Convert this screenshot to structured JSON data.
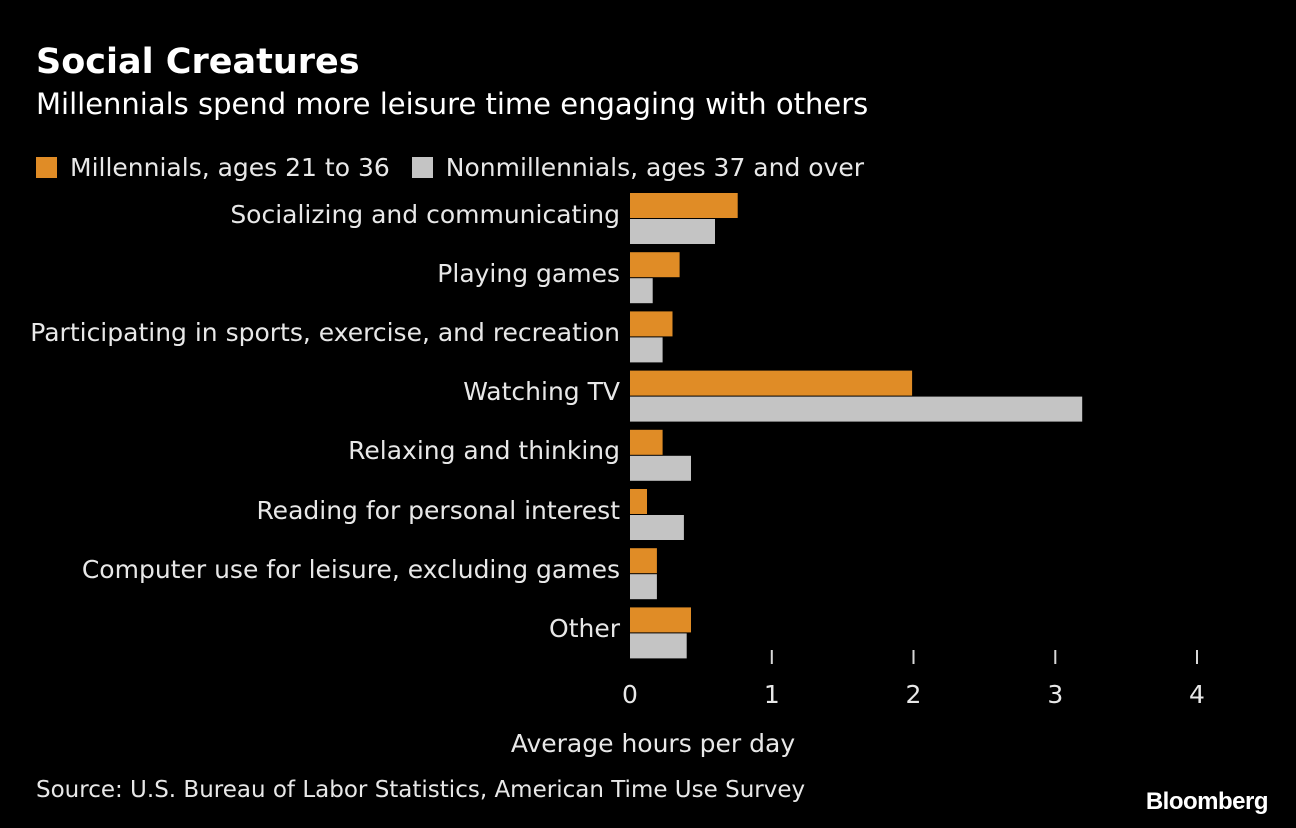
{
  "chart_data": {
    "type": "bar",
    "orientation": "horizontal",
    "title": "Social Creatures",
    "subtitle": "Millennials spend more leisure time engaging with others",
    "categories": [
      "Socializing and communicating",
      "Playing games",
      "Participating in sports, exercise, and recreation",
      "Watching TV",
      "Relaxing and thinking",
      "Reading for personal interest",
      "Computer use for leisure, excluding games",
      "Other"
    ],
    "series": [
      {
        "name": "Millennials, ages 21 to 36",
        "color": "#e08c26",
        "values": [
          0.76,
          0.35,
          0.3,
          1.99,
          0.23,
          0.12,
          0.19,
          0.43
        ]
      },
      {
        "name": "Nonmillennials, ages 37 and over",
        "color": "#c4c4c4",
        "values": [
          0.6,
          0.16,
          0.23,
          3.19,
          0.43,
          0.38,
          0.19,
          0.4
        ]
      }
    ],
    "xlabel": "Average hours per day",
    "xlim": [
      0,
      4
    ],
    "xticks": [
      "0",
      "1",
      "2",
      "3",
      "4"
    ],
    "grid": false,
    "legend": "top-left",
    "source": "Source: U.S. Bureau of Labor Statistics, American Time Use Survey",
    "brand": "Bloomberg"
  }
}
